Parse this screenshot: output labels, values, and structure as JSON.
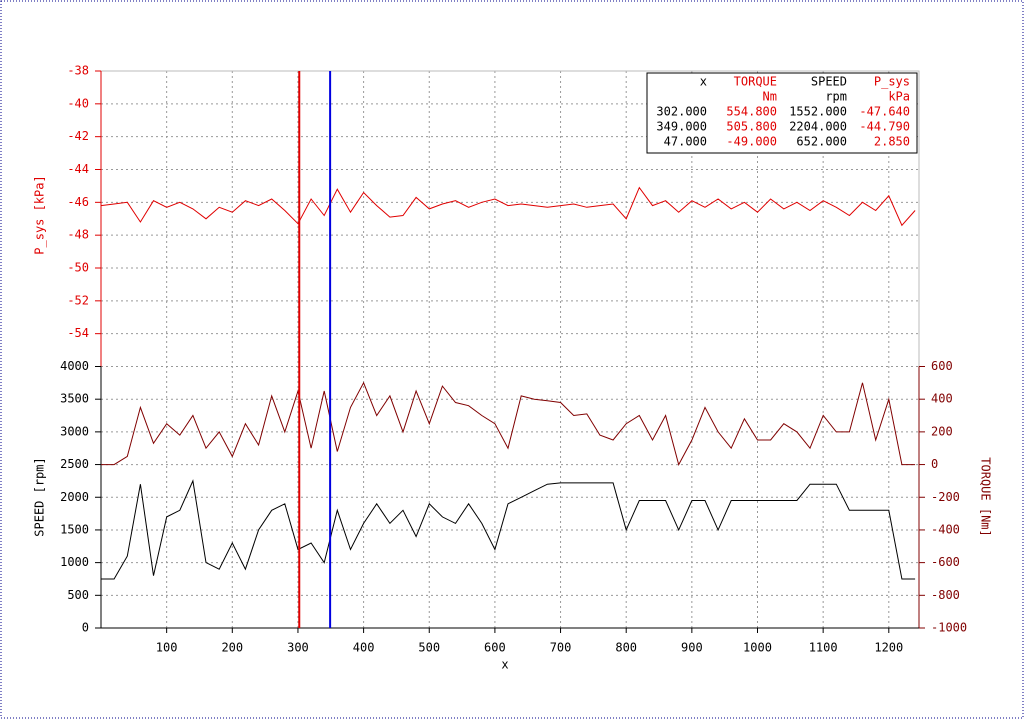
{
  "chart_data": {
    "type": "line",
    "x_label": "x",
    "x": [
      0,
      20,
      40,
      60,
      80,
      100,
      120,
      140,
      160,
      180,
      200,
      220,
      240,
      260,
      280,
      300,
      320,
      340,
      360,
      380,
      400,
      420,
      440,
      460,
      480,
      500,
      520,
      540,
      560,
      580,
      600,
      620,
      640,
      660,
      680,
      700,
      720,
      740,
      760,
      780,
      800,
      820,
      840,
      860,
      880,
      900,
      920,
      940,
      960,
      980,
      1000,
      1020,
      1040,
      1060,
      1080,
      1100,
      1120,
      1140,
      1160,
      1180,
      1200,
      1220,
      1240
    ],
    "xlim": [
      0,
      1246
    ],
    "xticks": [
      100,
      200,
      300,
      400,
      500,
      600,
      700,
      800,
      900,
      1000,
      1100,
      1200
    ],
    "ylim": [
      -56,
      -38
    ],
    "yticks": [
      -38,
      -40,
      -42,
      -44,
      -46,
      -48,
      -50,
      -52,
      -54
    ],
    "y_label": "P_sys [kPa]",
    "y2lim": [
      0,
      4000
    ],
    "y2ticks": [
      0,
      500,
      1000,
      1500,
      2000,
      2500,
      3000,
      3500,
      4000
    ],
    "y2_label": "SPEED [rpm]",
    "y3lim": [
      -1000,
      600
    ],
    "y3ticks": [
      -1000,
      -800,
      -600,
      -400,
      -200,
      0,
      200,
      400,
      600
    ],
    "y3_label": "TORQUE [Nm]",
    "grid": true,
    "series": [
      {
        "name": "P_sys",
        "color": "#e00000",
        "axis": "y",
        "values": [
          -46.2,
          -46.1,
          -46.0,
          -47.2,
          -45.9,
          -46.3,
          -46.0,
          -46.4,
          -47.0,
          -46.3,
          -46.6,
          -45.9,
          -46.2,
          -45.8,
          -46.5,
          -47.3,
          -45.8,
          -46.8,
          -45.2,
          -46.6,
          -45.4,
          -46.2,
          -46.9,
          -46.8,
          -45.7,
          -46.4,
          -46.1,
          -45.9,
          -46.3,
          -46.0,
          -45.8,
          -46.2,
          -46.1,
          -46.2,
          -46.3,
          -46.2,
          -46.1,
          -46.3,
          -46.2,
          -46.1,
          -47.0,
          -45.1,
          -46.2,
          -45.9,
          -46.6,
          -45.9,
          -46.3,
          -45.8,
          -46.4,
          -46.0,
          -46.6,
          -45.8,
          -46.4,
          -46.0,
          -46.5,
          -45.9,
          -46.3,
          -46.8,
          -46.0,
          -46.5,
          -45.6,
          -47.4,
          -46.5
        ]
      },
      {
        "name": "SPEED",
        "color": "#000000",
        "axis": "y2",
        "values": [
          750,
          750,
          1100,
          2200,
          800,
          1700,
          1800,
          2250,
          1000,
          900,
          1300,
          900,
          1500,
          1800,
          1900,
          1200,
          1300,
          1000,
          1800,
          1200,
          1600,
          1900,
          1600,
          1800,
          1400,
          1900,
          1700,
          1600,
          1900,
          1600,
          1200,
          1900,
          2000,
          2100,
          2200,
          2220,
          2220,
          2220,
          2220,
          2220,
          1500,
          1950,
          1950,
          1950,
          1500,
          1950,
          1950,
          1500,
          1950,
          1950,
          1950,
          1950,
          1950,
          1950,
          2200,
          2200,
          2200,
          1800,
          1800,
          1800,
          1800,
          750,
          750
        ]
      },
      {
        "name": "TORQUE",
        "color": "#800000",
        "axis": "y3",
        "values": [
          0,
          0,
          50,
          350,
          130,
          250,
          180,
          300,
          100,
          200,
          50,
          250,
          120,
          420,
          200,
          450,
          100,
          450,
          80,
          350,
          500,
          300,
          420,
          200,
          450,
          250,
          480,
          380,
          360,
          300,
          250,
          100,
          420,
          400,
          390,
          380,
          300,
          310,
          180,
          150,
          250,
          300,
          150,
          300,
          0,
          150,
          350,
          200,
          100,
          280,
          150,
          150,
          250,
          200,
          100,
          300,
          200,
          200,
          500,
          150,
          400,
          0,
          0
        ]
      }
    ],
    "cursors": [
      {
        "x": 302,
        "color": "#e00000"
      },
      {
        "x": 349,
        "color": "#0000e0"
      }
    ],
    "cursor_table": {
      "columns": [
        {
          "name": "x"
        },
        {
          "name": "TORQUE",
          "unit": "Nm"
        },
        {
          "name": "SPEED",
          "unit": "rpm"
        },
        {
          "name": "P_sys",
          "unit": "kPa"
        }
      ],
      "rows": [
        [
          "302.000",
          "554.800",
          "1552.000",
          "-47.640"
        ],
        [
          "349.000",
          "505.800",
          "2204.000",
          "-44.790"
        ],
        [
          "47.000",
          "-49.000",
          "652.000",
          "2.850"
        ]
      ]
    }
  }
}
